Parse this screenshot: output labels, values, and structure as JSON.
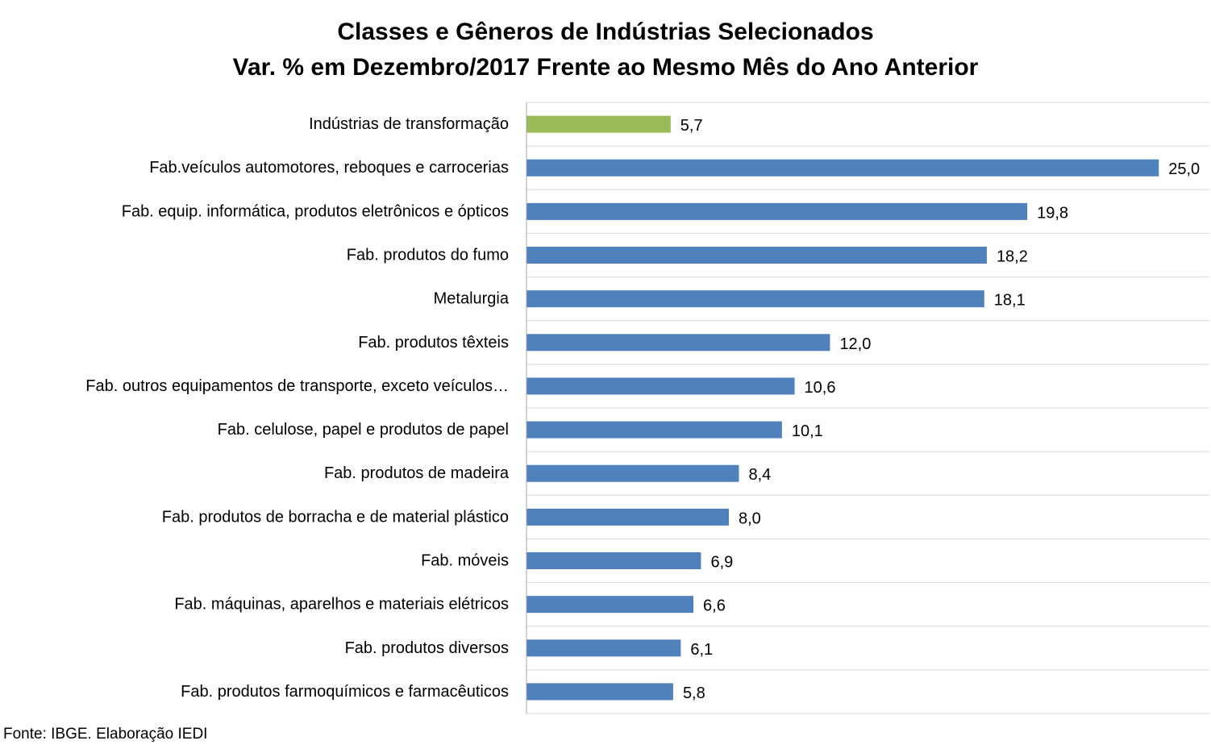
{
  "chart_data": {
    "type": "bar",
    "orientation": "horizontal",
    "title": "Classes e Gêneros de Indústrias Selecionados",
    "subtitle": "Var. % em Dezembro/2017 Frente ao Mesmo Mês do Ano Anterior",
    "categories": [
      "Indústrias de transformação",
      "Fab.veículos automotores, reboques e carrocerias",
      "Fab. equip. informática, produtos eletrônicos e ópticos",
      "Fab. produtos do fumo",
      "Metalurgia",
      "Fab. produtos têxteis",
      "Fab. outros equipamentos de transporte, exceto veículos…",
      "Fab. celulose, papel e produtos de papel",
      "Fab. produtos de madeira",
      "Fab. produtos de borracha e de material plástico",
      "Fab. móveis",
      "Fab. máquinas, aparelhos e materiais elétricos",
      "Fab. produtos diversos",
      "Fab. produtos farmoquímicos e farmacêuticos"
    ],
    "values": [
      5.7,
      25.0,
      19.8,
      18.2,
      18.1,
      12.0,
      10.6,
      10.1,
      8.4,
      8.0,
      6.9,
      6.6,
      6.1,
      5.8
    ],
    "value_labels": [
      "5,7",
      "25,0",
      "19,8",
      "18,2",
      "18,1",
      "12,0",
      "10,6",
      "10,1",
      "8,4",
      "8,0",
      "6,9",
      "6,6",
      "6,1",
      "5,8"
    ],
    "highlight_index": 0,
    "colors": {
      "highlight": "#9BBB59",
      "bar": "#4F81BD",
      "gridline": "#D9D9D9",
      "axis": "#A6A6A6"
    },
    "xlim": [
      0,
      27
    ],
    "grid": "horizontal-lines",
    "legend": "none",
    "data_labels": true
  },
  "footer": {
    "source": "Fonte: IBGE. Elaboração IEDI"
  }
}
